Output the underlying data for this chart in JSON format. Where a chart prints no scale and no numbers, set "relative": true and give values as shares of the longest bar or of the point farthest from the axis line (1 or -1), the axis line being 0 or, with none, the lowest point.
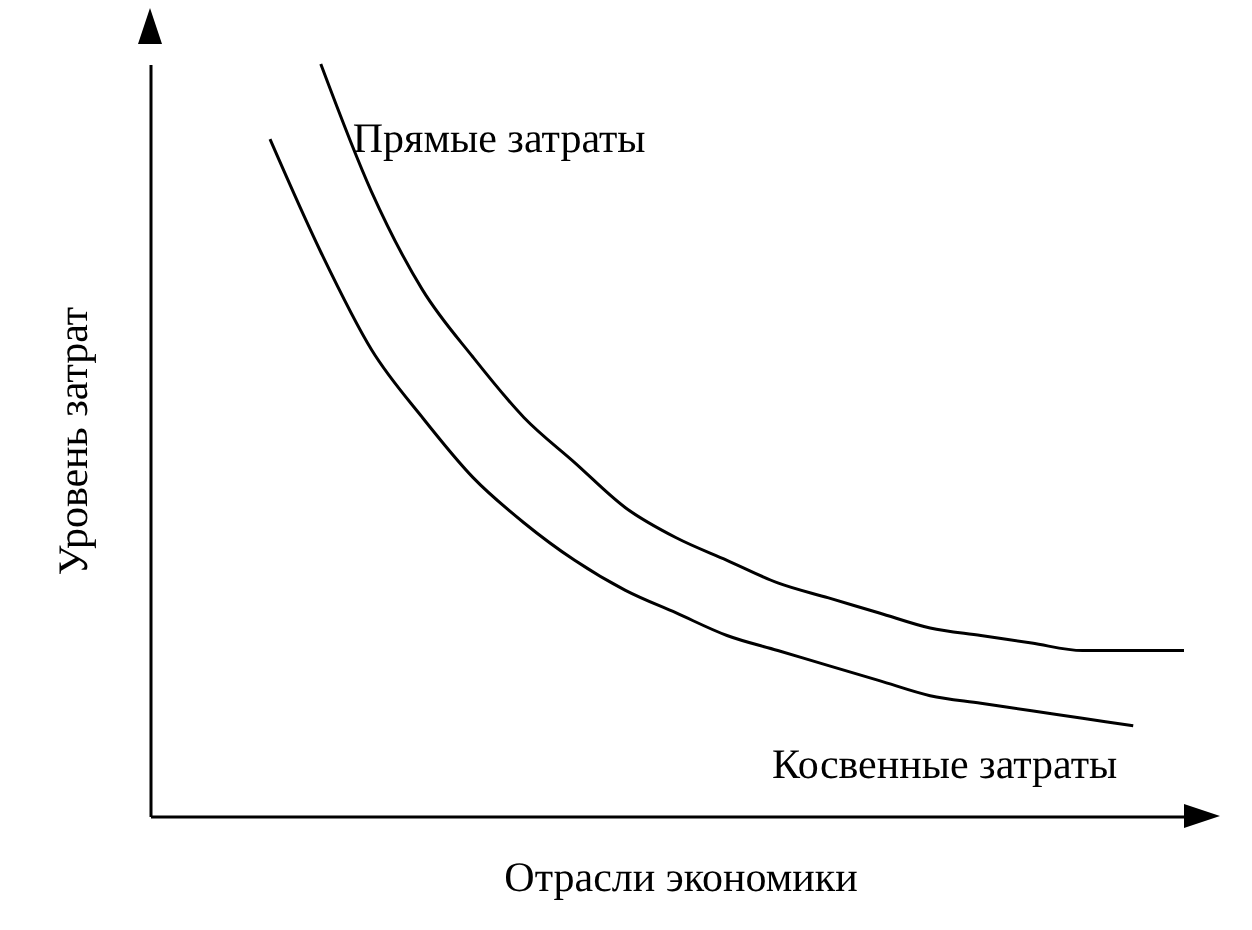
{
  "chart_data": {
    "type": "line",
    "relative": true,
    "xlabel": "Отрасли экономики",
    "ylabel": "Уровень затрат",
    "legend": false,
    "grid": false,
    "marker": "none",
    "line_style": "solid",
    "categories": [
      null,
      null,
      null,
      null,
      null,
      null,
      null,
      null,
      null,
      null,
      null,
      null,
      null,
      null,
      null,
      null,
      null,
      null,
      null
    ],
    "series": [
      {
        "name": "Прямые затраты",
        "color": "#000000",
        "values": [
          null,
          1,
          0.83,
          0.7,
          0.61,
          0.53,
          0.47,
          0.41,
          0.37,
          0.34,
          0.31,
          0.29,
          0.27,
          0.25,
          0.24,
          0.23,
          0.22,
          0.22,
          0.22
        ]
      },
      {
        "name": "Косвенные затраты",
        "color": "#000000",
        "values": [
          0.9,
          0.75,
          0.62,
          0.53,
          0.45,
          0.39,
          0.34,
          0.3,
          0.27,
          0.24,
          0.22,
          0.2,
          0.18,
          0.16,
          0.15,
          0.14,
          0.13,
          0.12,
          null
        ]
      }
    ]
  }
}
